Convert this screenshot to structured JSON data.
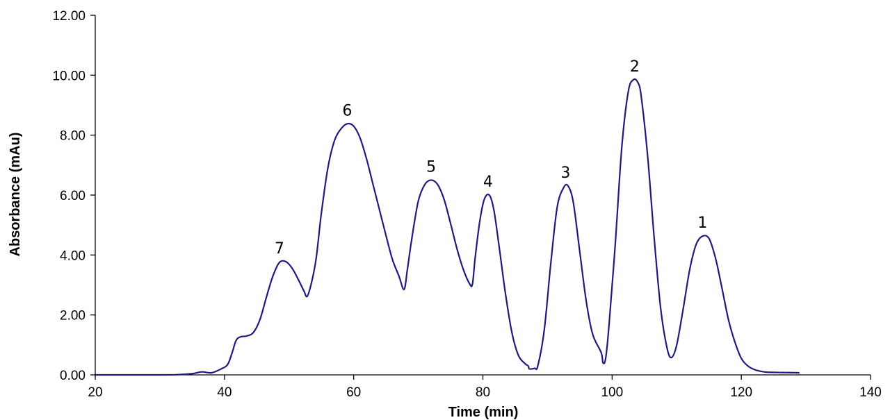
{
  "chart_data": {
    "type": "line",
    "title": "",
    "xlabel": "Time (min)",
    "ylabel": "Absorbance (mAu)",
    "xlim": [
      20,
      140
    ],
    "ylim": [
      0,
      12
    ],
    "x_ticks": [
      "20",
      "40",
      "60",
      "80",
      "100",
      "120",
      "140"
    ],
    "y_ticks": [
      "0.00",
      "2.00",
      "4.00",
      "6.00",
      "8.00",
      "10.00",
      "12.00"
    ],
    "grid": false,
    "legend": "none",
    "line_color": "#1f1a80",
    "series": [
      {
        "x": [
          20,
          30,
          33,
          35,
          36.5,
          38,
          39.5,
          40.5,
          41.2,
          41.8,
          42.5,
          43.5,
          44.5,
          45.5,
          46.5,
          47.5,
          48.5,
          49.5,
          50.5,
          51.5,
          52.3,
          52.8,
          53.5,
          54.2,
          55,
          56,
          57,
          58,
          59,
          60,
          61,
          62,
          63,
          64,
          65,
          66,
          67,
          67.8,
          68.3,
          69,
          70,
          71,
          72,
          73,
          74,
          75,
          76,
          77,
          78,
          78.4,
          78.8,
          79.5,
          80.2,
          81,
          81.7,
          82.5,
          83.5,
          84.5,
          85.5,
          86.5,
          87,
          87.2,
          88,
          88.5,
          89.5,
          90.5,
          91.5,
          92.5,
          93.2,
          94,
          95,
          96,
          97,
          98.3,
          98.6,
          99,
          99.5,
          100.5,
          101.5,
          102.5,
          103.3,
          104,
          104.5,
          105.5,
          106.5,
          107.5,
          108.5,
          109.2,
          110,
          111,
          112,
          113,
          114,
          115,
          116,
          117,
          118,
          119,
          120,
          121,
          122,
          123,
          124,
          126,
          129
        ],
        "y": [
          0,
          0,
          0.01,
          0.04,
          0.1,
          0.07,
          0.2,
          0.35,
          0.75,
          1.15,
          1.27,
          1.3,
          1.42,
          1.85,
          2.6,
          3.3,
          3.75,
          3.78,
          3.55,
          3.15,
          2.8,
          2.62,
          3.1,
          3.9,
          5.4,
          6.9,
          7.8,
          8.2,
          8.38,
          8.3,
          7.9,
          7.2,
          6.35,
          5.5,
          4.65,
          3.85,
          3.3,
          2.85,
          3.5,
          4.55,
          5.8,
          6.35,
          6.5,
          6.35,
          5.85,
          5.05,
          4.2,
          3.5,
          3.02,
          3.05,
          3.9,
          5.1,
          5.85,
          6.0,
          5.5,
          4.3,
          2.7,
          1.4,
          0.65,
          0.38,
          0.3,
          0.2,
          0.22,
          0.3,
          1.5,
          3.7,
          5.6,
          6.25,
          6.3,
          5.75,
          4.1,
          2.45,
          1.35,
          0.75,
          0.4,
          0.55,
          1.6,
          4.4,
          7.6,
          9.45,
          9.85,
          9.75,
          9.3,
          7.3,
          4.6,
          2.25,
          0.9,
          0.58,
          1.0,
          2.2,
          3.5,
          4.35,
          4.63,
          4.55,
          3.9,
          2.9,
          1.85,
          1.1,
          0.55,
          0.3,
          0.18,
          0.12,
          0.09,
          0.08,
          0.07
        ]
      }
    ],
    "peak_labels": [
      {
        "text": "7",
        "x": 48.5,
        "y": 3.78
      },
      {
        "text": "6",
        "x": 59,
        "y": 8.38
      },
      {
        "text": "5",
        "x": 72,
        "y": 6.5
      },
      {
        "text": "4",
        "x": 80.8,
        "y": 6.0
      },
      {
        "text": "3",
        "x": 92.8,
        "y": 6.3
      },
      {
        "text": "2",
        "x": 103.5,
        "y": 9.85
      },
      {
        "text": "1",
        "x": 114,
        "y": 4.63
      }
    ]
  }
}
